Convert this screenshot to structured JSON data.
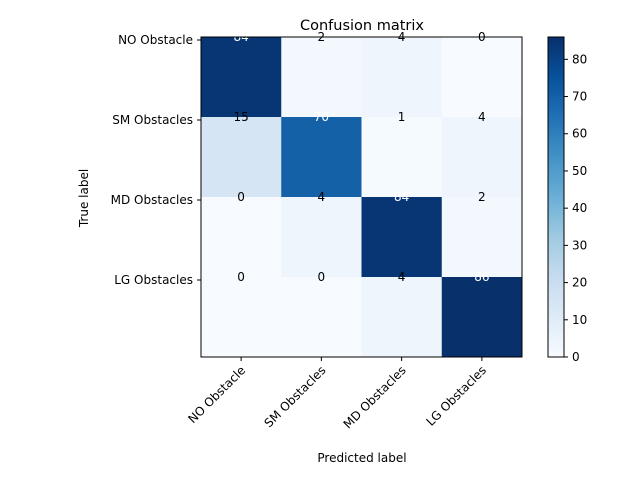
{
  "chart_data": {
    "type": "heatmap",
    "title": "Confusion matrix",
    "xlabel": "Predicted label",
    "ylabel": "True label",
    "x_categories": [
      "NO Obstacle",
      "SM Obstacles",
      "MD Obstacles",
      "LG Obstacles"
    ],
    "y_categories": [
      "NO Obstacle",
      "SM Obstacles",
      "MD Obstacles",
      "LG Obstacles"
    ],
    "values": [
      [
        84,
        2,
        4,
        0
      ],
      [
        15,
        70,
        1,
        4
      ],
      [
        0,
        4,
        84,
        2
      ],
      [
        0,
        0,
        4,
        86
      ]
    ],
    "colormap": "Blues",
    "vmin": 0,
    "vmax": 86,
    "colorbar_ticks": [
      0,
      10,
      20,
      30,
      40,
      50,
      60,
      70,
      80
    ],
    "x_tick_rotation_deg": 45
  }
}
